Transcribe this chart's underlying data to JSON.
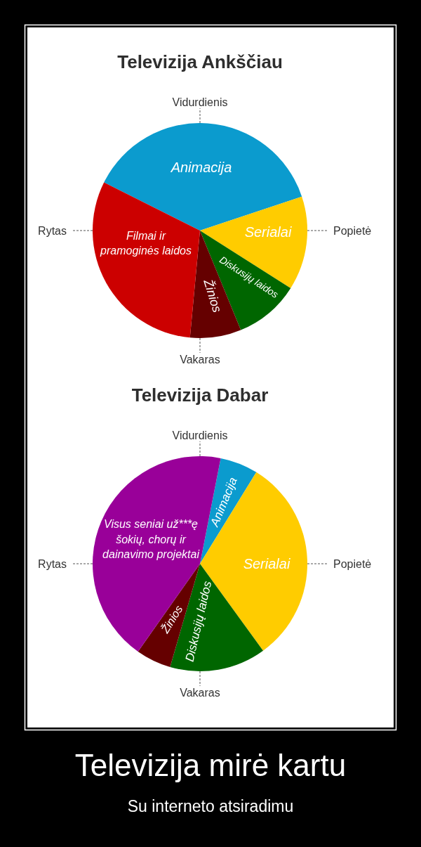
{
  "chart_data": [
    {
      "type": "pie",
      "title": "Televizija Ankščiau",
      "categories": [
        "Animacija",
        "Serialai",
        "Diskusijų laidos",
        "Žinios",
        "Filmai ir pramoginės laidos"
      ],
      "values": [
        37.5,
        14.1,
        9.8,
        7.7,
        30.9
      ],
      "colors": [
        "#0b9bce",
        "#ffcc00",
        "#006600",
        "#650000",
        "#cc0000"
      ],
      "annotations": [
        "Vidurdienis",
        "Popietė",
        "Vakaras",
        "Rytas"
      ]
    },
    {
      "type": "pie",
      "title": "Televizija Dabar",
      "categories": [
        "Animacija",
        "Serialai",
        "Diskusijų laidos",
        "Žinios",
        "Visus seniai už***ę šokių, chorų ir dainavimo projektai"
      ],
      "values": [
        5.7,
        31.2,
        14.5,
        5.3,
        43.3
      ],
      "colors": [
        "#0b9bce",
        "#ffcc00",
        "#006600",
        "#650000",
        "#990099"
      ],
      "annotations": [
        "Vidurdienis",
        "Popietė",
        "Vakaras",
        "Rytas"
      ]
    },
    {
      "type": "other",
      "title": "Televizija mirė kartu",
      "subtitle": "Su interneto atsiradimu"
    }
  ]
}
